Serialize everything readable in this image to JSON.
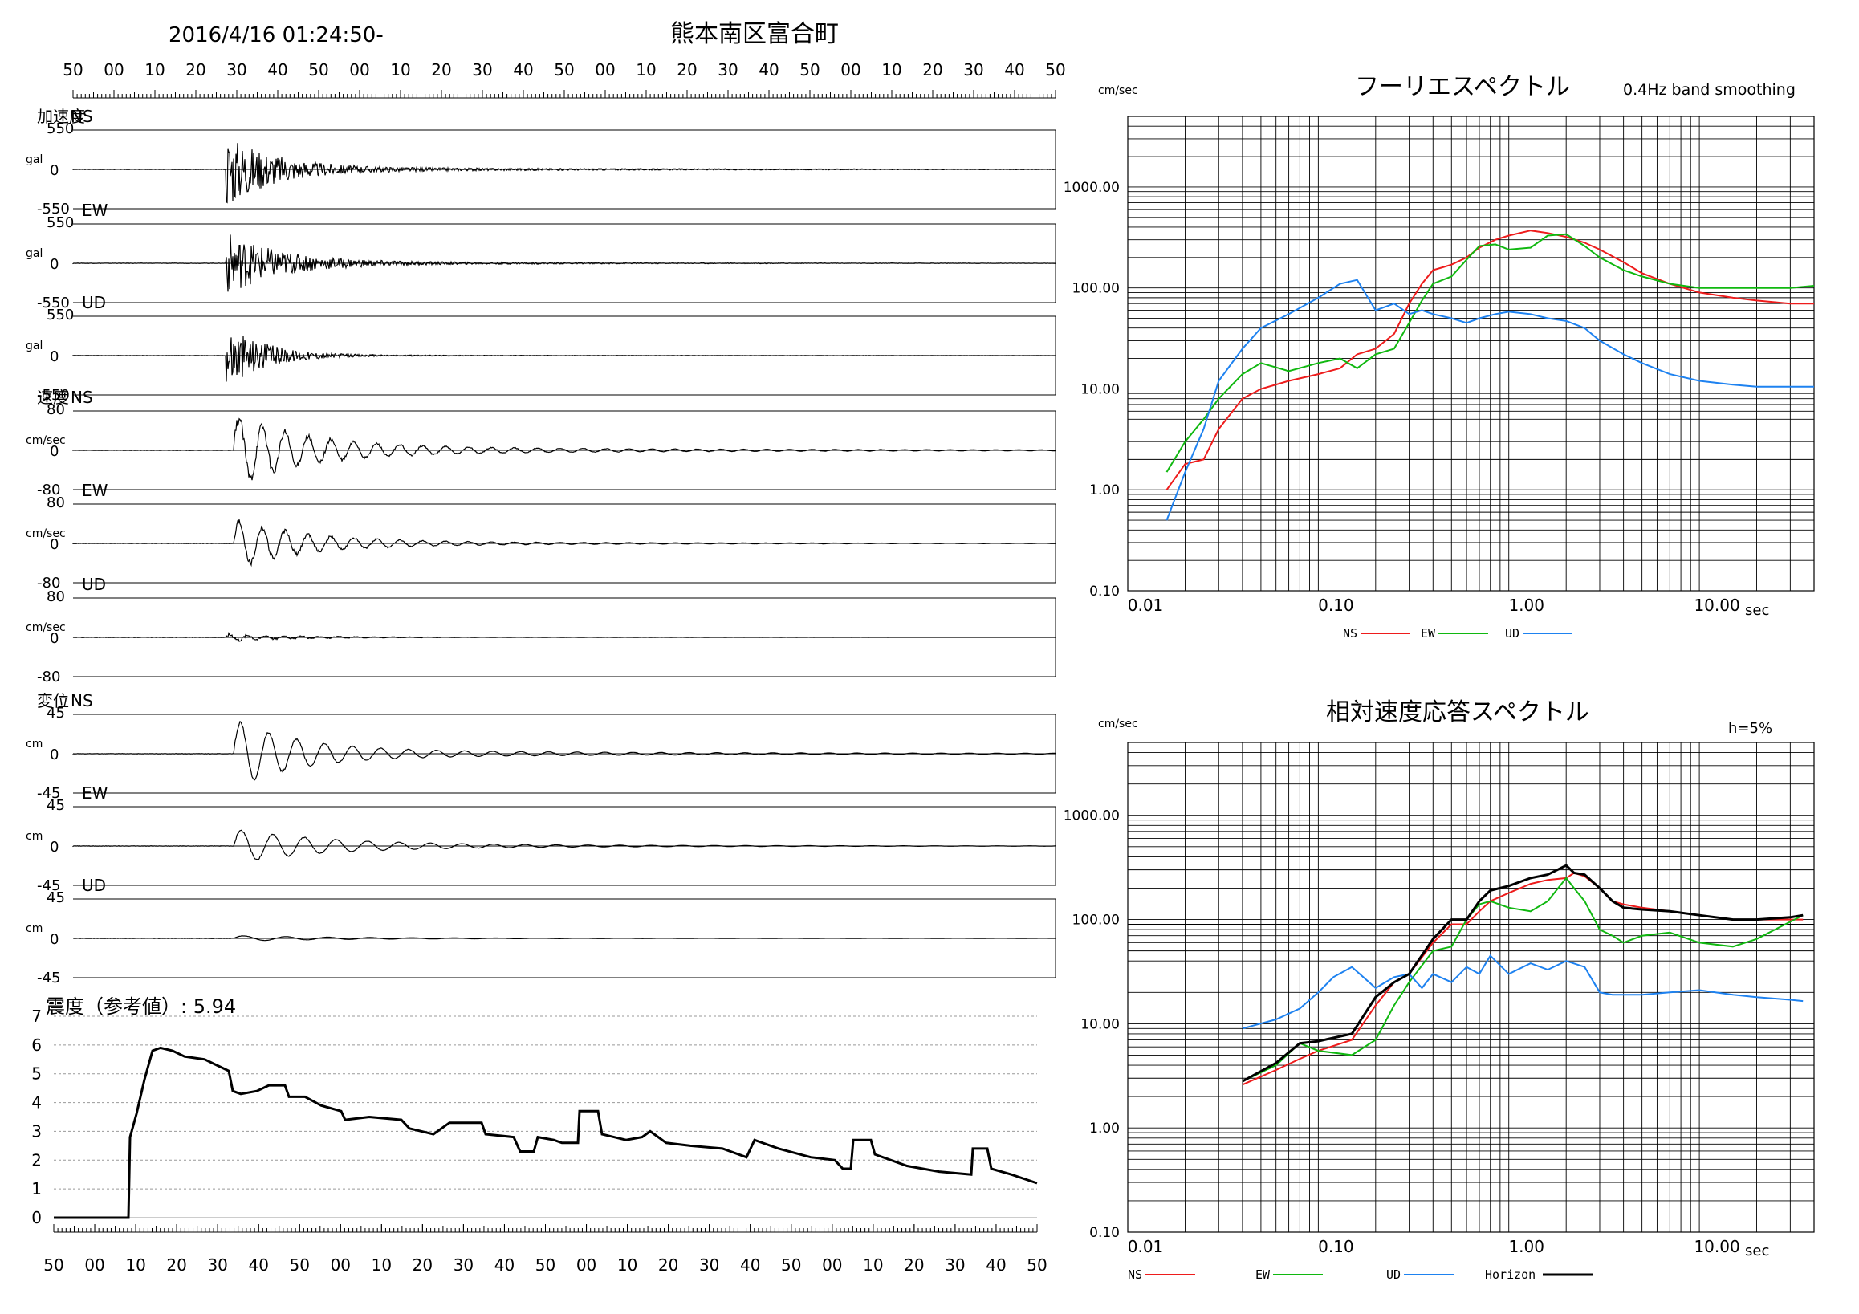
{
  "header": {
    "datetime": "2016/4/16 01:24:50-",
    "station": "熊本南区富合町"
  },
  "time_axis_labels": [
    "50",
    "00",
    "10",
    "20",
    "30",
    "40",
    "50",
    "00",
    "10",
    "20",
    "30",
    "40",
    "50",
    "00",
    "10",
    "20",
    "30",
    "40",
    "50",
    "00",
    "10",
    "20",
    "30",
    "40",
    "50"
  ],
  "waveforms": [
    {
      "group": "加速度",
      "component": "NS",
      "unit": "gal",
      "max": "550",
      "zero": "0",
      "min": "-550"
    },
    {
      "group": "",
      "component": "EW",
      "unit": "gal",
      "max": "550",
      "zero": "0",
      "min": "-550"
    },
    {
      "group": "",
      "component": "UD",
      "unit": "gal",
      "max": "550",
      "zero": "0",
      "min": "-550"
    },
    {
      "group": "速度",
      "component": "NS",
      "unit": "cm/sec",
      "max": "80",
      "zero": "0",
      "min": "-80"
    },
    {
      "group": "",
      "component": "EW",
      "unit": "cm/sec",
      "max": "80",
      "zero": "0",
      "min": "-80"
    },
    {
      "group": "",
      "component": "UD",
      "unit": "cm/sec",
      "max": "80",
      "zero": "0",
      "min": "-80"
    },
    {
      "group": "変位",
      "component": "NS",
      "unit": "cm",
      "max": "45",
      "zero": "0",
      "min": "-45"
    },
    {
      "group": "",
      "component": "EW",
      "unit": "cm",
      "max": "45",
      "zero": "0",
      "min": "-45"
    },
    {
      "group": "",
      "component": "UD",
      "unit": "cm",
      "max": "45",
      "zero": "0",
      "min": "-45"
    }
  ],
  "intensity": {
    "title": "震度（参考値）: 5.94",
    "y_ticks": [
      "7",
      "6",
      "5",
      "4",
      "3",
      "2",
      "1",
      "0"
    ]
  },
  "spectra": {
    "freq_labels": [
      "0.01",
      "0.10",
      "1.00",
      "10.00"
    ],
    "amp_labels": [
      "1000.00",
      "100.00",
      "10.00",
      "1.00",
      "0.10"
    ],
    "x_unit": "sec",
    "y_unit": "cm/sec"
  },
  "chart_data": [
    {
      "type": "line",
      "title": "フーリエスペクトル",
      "subtitle": "0.4Hz band smoothing",
      "xlabel": "sec",
      "ylabel": "cm/sec",
      "xscale": "log",
      "yscale": "log",
      "xlim": [
        0.01,
        40
      ],
      "ylim": [
        0.1,
        5000
      ],
      "grid": true,
      "legend": "bottom",
      "series": [
        {
          "name": "NS",
          "color": "#ee1c1c",
          "x": [
            0.016,
            0.02,
            0.025,
            0.03,
            0.04,
            0.05,
            0.07,
            0.1,
            0.13,
            0.16,
            0.2,
            0.25,
            0.3,
            0.35,
            0.4,
            0.45,
            0.5,
            0.6,
            0.7,
            0.85,
            1.0,
            1.3,
            1.6,
            2.0,
            2.5,
            3.0,
            4.0,
            5.0,
            7.0,
            10.0,
            15.0,
            20.0,
            30.0,
            40.0
          ],
          "y": [
            1.0,
            1.8,
            2.0,
            4.0,
            8.0,
            10.0,
            12.0,
            14.0,
            16.0,
            22.0,
            25.0,
            35.0,
            70.0,
            110.0,
            150.0,
            160.0,
            170.0,
            200.0,
            250.0,
            300.0,
            330.0,
            370.0,
            350.0,
            320.0,
            280.0,
            240.0,
            180.0,
            140.0,
            110.0,
            90.0,
            80.0,
            75.0,
            70.0,
            70.0
          ]
        },
        {
          "name": "EW",
          "color": "#10b810",
          "x": [
            0.016,
            0.02,
            0.025,
            0.03,
            0.04,
            0.05,
            0.07,
            0.1,
            0.13,
            0.16,
            0.2,
            0.25,
            0.3,
            0.35,
            0.4,
            0.5,
            0.6,
            0.7,
            0.85,
            1.0,
            1.3,
            1.6,
            2.0,
            2.5,
            3.0,
            4.0,
            5.0,
            7.0,
            10.0,
            15.0,
            20.0,
            30.0,
            40.0
          ],
          "y": [
            1.5,
            3.0,
            5.0,
            8.0,
            14.0,
            18.0,
            15.0,
            18.0,
            20.0,
            16.0,
            22.0,
            25.0,
            45.0,
            75.0,
            110.0,
            130.0,
            190.0,
            260.0,
            270.0,
            240.0,
            250.0,
            330.0,
            340.0,
            260.0,
            200.0,
            150.0,
            130.0,
            110.0,
            100.0,
            100.0,
            100.0,
            100.0,
            105.0
          ]
        },
        {
          "name": "UD",
          "color": "#1e82f0",
          "x": [
            0.016,
            0.02,
            0.025,
            0.03,
            0.04,
            0.05,
            0.07,
            0.1,
            0.13,
            0.16,
            0.2,
            0.25,
            0.3,
            0.35,
            0.4,
            0.5,
            0.6,
            0.7,
            0.85,
            1.0,
            1.3,
            1.6,
            2.0,
            2.5,
            3.0,
            4.0,
            5.0,
            7.0,
            10.0,
            15.0,
            20.0,
            30.0,
            40.0
          ],
          "y": [
            0.5,
            1.5,
            4.0,
            12.0,
            25.0,
            40.0,
            55.0,
            80.0,
            110.0,
            120.0,
            60.0,
            70.0,
            55.0,
            60.0,
            55.0,
            50.0,
            45.0,
            50.0,
            55.0,
            58.0,
            55.0,
            50.0,
            47.0,
            40.0,
            30.0,
            22.0,
            18.0,
            14.0,
            12.0,
            11.0,
            10.5,
            10.5,
            10.5
          ]
        }
      ]
    },
    {
      "type": "line",
      "title": "相対速度応答スペクトル",
      "subtitle": "h=5%",
      "xlabel": "sec",
      "ylabel": "cm/sec",
      "xscale": "log",
      "yscale": "log",
      "xlim": [
        0.01,
        40
      ],
      "ylim": [
        0.1,
        5000
      ],
      "grid": true,
      "legend": "bottom",
      "series": [
        {
          "name": "NS",
          "color": "#ee1c1c",
          "x": [
            0.04,
            0.06,
            0.08,
            0.1,
            0.15,
            0.2,
            0.25,
            0.3,
            0.4,
            0.5,
            0.6,
            0.7,
            0.8,
            1.0,
            1.3,
            1.6,
            2.0,
            2.2,
            2.5,
            3.0,
            3.5,
            4.0,
            5.0,
            7.0,
            10.0,
            15.0,
            20.0,
            30.0,
            35.0
          ],
          "y": [
            2.6,
            3.6,
            4.6,
            5.5,
            7.0,
            15.0,
            25.0,
            30.0,
            60.0,
            90.0,
            90.0,
            120.0,
            150.0,
            180.0,
            220.0,
            240.0,
            250.0,
            280.0,
            260.0,
            200.0,
            150.0,
            140.0,
            130.0,
            120.0,
            110.0,
            100.0,
            100.0,
            100.0,
            100.0
          ]
        },
        {
          "name": "EW",
          "color": "#10b810",
          "x": [
            0.04,
            0.06,
            0.08,
            0.1,
            0.15,
            0.2,
            0.25,
            0.3,
            0.4,
            0.5,
            0.6,
            0.7,
            0.8,
            1.0,
            1.3,
            1.6,
            2.0,
            2.2,
            2.5,
            3.0,
            3.5,
            4.0,
            5.0,
            7.0,
            10.0,
            15.0,
            20.0,
            30.0,
            35.0
          ],
          "y": [
            2.8,
            4.0,
            6.5,
            5.5,
            5.0,
            7.0,
            15.0,
            25.0,
            50.0,
            55.0,
            100.0,
            140.0,
            150.0,
            130.0,
            120.0,
            150.0,
            250.0,
            200.0,
            150.0,
            80.0,
            70.0,
            60.0,
            70.0,
            75.0,
            60.0,
            55.0,
            65.0,
            95.0,
            110.0
          ]
        },
        {
          "name": "UD",
          "color": "#1e82f0",
          "x": [
            0.04,
            0.06,
            0.08,
            0.1,
            0.12,
            0.15,
            0.2,
            0.25,
            0.3,
            0.35,
            0.4,
            0.5,
            0.6,
            0.7,
            0.8,
            1.0,
            1.3,
            1.6,
            2.0,
            2.5,
            3.0,
            3.5,
            4.0,
            5.0,
            7.0,
            10.0,
            15.0,
            20.0,
            30.0,
            35.0
          ],
          "y": [
            9.0,
            11.0,
            14.0,
            20.0,
            28.0,
            35.0,
            22.0,
            28.0,
            30.0,
            22.0,
            30.0,
            25.0,
            35.0,
            30.0,
            45.0,
            30.0,
            38.0,
            33.0,
            40.0,
            35.0,
            20.0,
            19.0,
            19.0,
            19.0,
            20.0,
            21.0,
            19.0,
            18.0,
            17.0,
            16.5
          ]
        },
        {
          "name": "Horizon",
          "color": "#000000",
          "x": [
            0.04,
            0.06,
            0.08,
            0.1,
            0.15,
            0.2,
            0.25,
            0.3,
            0.4,
            0.5,
            0.6,
            0.7,
            0.8,
            1.0,
            1.3,
            1.6,
            2.0,
            2.2,
            2.5,
            3.0,
            3.5,
            4.0,
            5.0,
            7.0,
            10.0,
            15.0,
            20.0,
            30.0,
            35.0
          ],
          "y": [
            2.8,
            4.2,
            6.5,
            6.8,
            8.0,
            18.0,
            25.0,
            30.0,
            65.0,
            100.0,
            100.0,
            150.0,
            190.0,
            210.0,
            250.0,
            270.0,
            330.0,
            280.0,
            270.0,
            200.0,
            150.0,
            130.0,
            125.0,
            120.0,
            110.0,
            100.0,
            100.0,
            105.0,
            110.0
          ]
        }
      ]
    }
  ]
}
